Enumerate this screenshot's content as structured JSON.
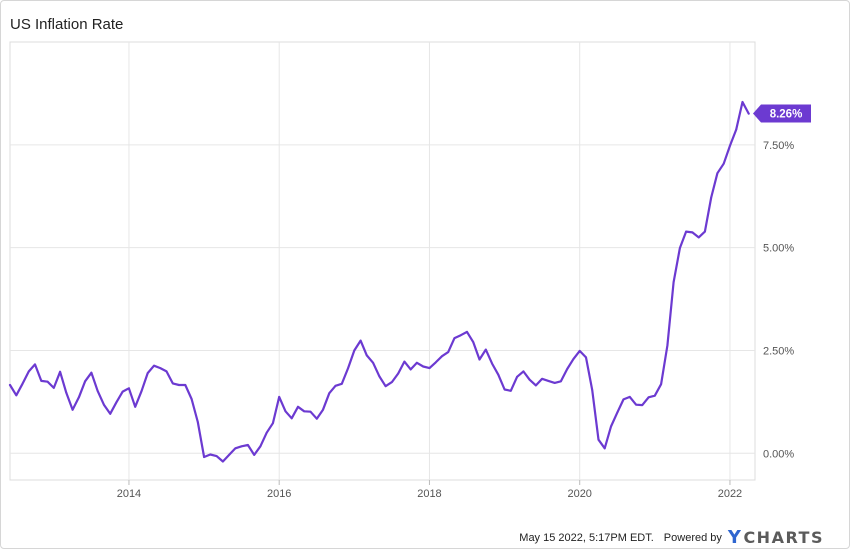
{
  "title": "US Inflation Rate",
  "footer": {
    "timestamp": "May 15 2022, 5:17PM EDT.",
    "powered_by": "Powered by",
    "logo_y": "Y",
    "logo_text": "CHARTS"
  },
  "colors": {
    "line": "#6c3ad1",
    "badge": "#6c3ad1",
    "grid": "#e6e6e6",
    "axis_text": "#555555",
    "logo_accent": "#2f66d0"
  },
  "chart_data": {
    "type": "line",
    "title": "US Inflation Rate",
    "xlabel": "",
    "ylabel": "",
    "x_start": "2012-06",
    "x_end": "2022-04",
    "xlim": [
      "2012-06",
      "2022-05"
    ],
    "ylim": [
      -0.65,
      10.0
    ],
    "grid": true,
    "y_axis_position": "right",
    "y_ticks": [
      0,
      2.5,
      5,
      7.5
    ],
    "y_tick_labels": [
      "0.00%",
      "2.50%",
      "5.00%",
      "7.50%"
    ],
    "x_ticks": [
      "2014-01",
      "2016-01",
      "2018-01",
      "2020-01",
      "2022-01"
    ],
    "x_tick_labels": [
      "2014",
      "2016",
      "2018",
      "2020",
      "2022"
    ],
    "last_value_label": "8.26%",
    "series": [
      {
        "values": [
          1.66,
          1.41,
          1.69,
          1.99,
          2.16,
          1.76,
          1.74,
          1.59,
          1.98,
          1.47,
          1.06,
          1.36,
          1.75,
          1.96,
          1.52,
          1.18,
          0.96,
          1.24,
          1.5,
          1.58,
          1.13,
          1.51,
          1.95,
          2.13,
          2.07,
          1.99,
          1.7,
          1.66,
          1.66,
          1.32,
          0.76,
          -0.09,
          -0.03,
          -0.07,
          -0.2,
          -0.04,
          0.12,
          0.17,
          0.2,
          -0.04,
          0.17,
          0.5,
          0.73,
          1.37,
          1.02,
          0.85,
          1.13,
          1.02,
          1.01,
          0.84,
          1.06,
          1.46,
          1.64,
          1.69,
          2.07,
          2.5,
          2.74,
          2.38,
          2.2,
          1.87,
          1.63,
          1.73,
          1.94,
          2.23,
          2.04,
          2.2,
          2.11,
          2.07,
          2.21,
          2.36,
          2.46,
          2.8,
          2.87,
          2.95,
          2.7,
          2.28,
          2.52,
          2.18,
          1.91,
          1.55,
          1.52,
          1.86,
          1.99,
          1.79,
          1.65,
          1.81,
          1.76,
          1.71,
          1.75,
          2.05,
          2.29,
          2.49,
          2.33,
          1.54,
          0.33,
          0.12,
          0.65,
          0.99,
          1.31,
          1.37,
          1.18,
          1.17,
          1.36,
          1.4,
          1.68,
          2.62,
          4.16,
          4.99,
          5.39,
          5.37,
          5.25,
          5.39,
          6.22,
          6.81,
          7.04,
          7.48,
          7.87,
          8.54,
          8.26
        ]
      }
    ]
  }
}
